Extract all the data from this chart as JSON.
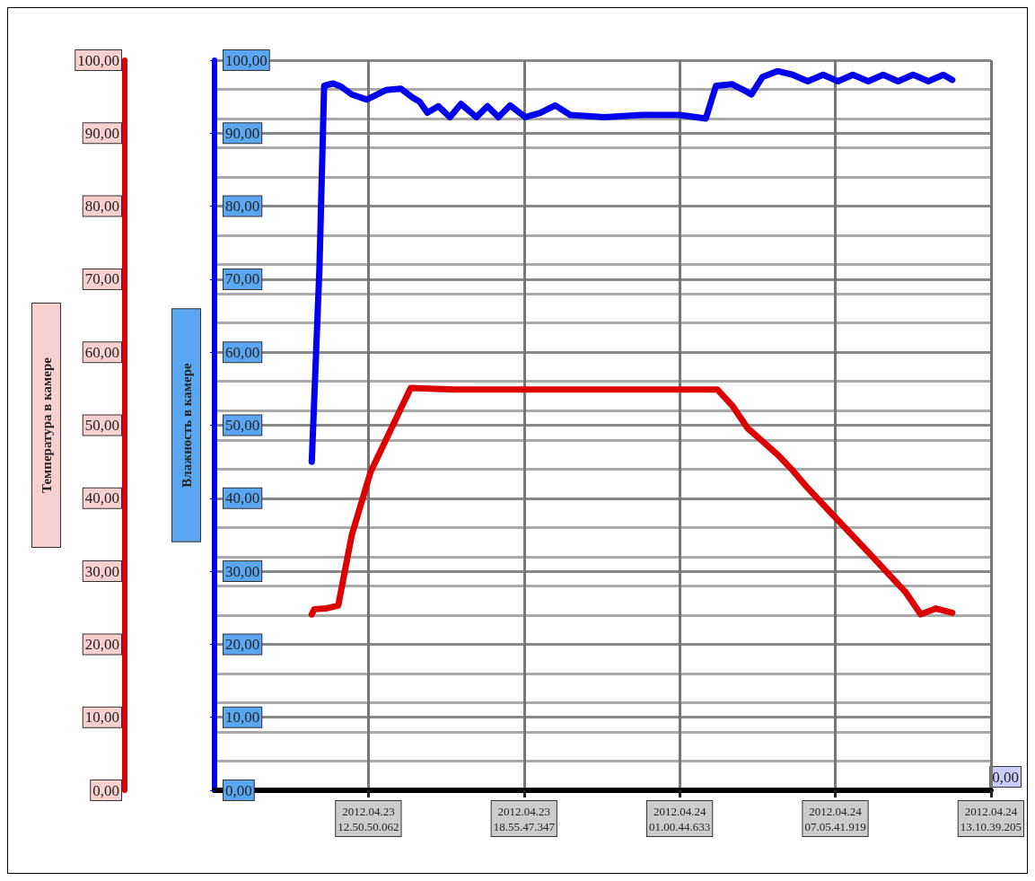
{
  "chart_data": {
    "type": "line",
    "ylabel": "Температура в камере",
    "y2label": "Влажность в камере",
    "annotations": [
      "0,00"
    ],
    "xlim": [
      "2012-04-23T06:50",
      "2012-04-24T13:10:39"
    ],
    "xticks": [
      {
        "value": "2012-04-23T12:50:50",
        "label": "2012.04.23 12.50.50.062"
      },
      {
        "value": "2012-04-23T18:55:47",
        "label": "2012.04.23 18.55.47.347"
      },
      {
        "value": "2012-04-24T01:00:45",
        "label": "2012.04.24 01.00.44.633"
      },
      {
        "value": "2012-04-24T07:05:42",
        "label": "2012.04.24 07.05.41.919"
      },
      {
        "value": "2012-04-24T13:10:39",
        "label": "2012.04.24 13.10.39.205"
      }
    ],
    "ylim": [
      0,
      100
    ],
    "yticks": [
      {
        "value": 0,
        "label": "0,00"
      },
      {
        "value": 10,
        "label": "10,00"
      },
      {
        "value": 20,
        "label": "20,00"
      },
      {
        "value": 30,
        "label": "30,00"
      },
      {
        "value": 40,
        "label": "40,00"
      },
      {
        "value": 50,
        "label": "50,00"
      },
      {
        "value": 60,
        "label": "60,00"
      },
      {
        "value": 70,
        "label": "70,00"
      },
      {
        "value": 80,
        "label": "80,00"
      },
      {
        "value": 90,
        "label": "90,00"
      },
      {
        "value": 100,
        "label": "100,00"
      }
    ],
    "y2lim": [
      0,
      100
    ],
    "y2ticks": [
      {
        "value": 0,
        "label": "0,00"
      },
      {
        "value": 10,
        "label": "10,00"
      },
      {
        "value": 20,
        "label": "20,00"
      },
      {
        "value": 30,
        "label": "30,00"
      },
      {
        "value": 40,
        "label": "40,00"
      },
      {
        "value": 50,
        "label": "50,00"
      },
      {
        "value": 60,
        "label": "60,00"
      },
      {
        "value": 70,
        "label": "70,00"
      },
      {
        "value": 80,
        "label": "80,00"
      },
      {
        "value": 90,
        "label": "90,00"
      },
      {
        "value": 100,
        "label": "100,00"
      }
    ],
    "grid": true,
    "marker": "none",
    "line_style": "solid",
    "series": [
      {
        "color": "#dd0000",
        "x": [
          "2012-04-23T10:38",
          "2012-04-23T10:44",
          "2012-04-23T11:10",
          "2012-04-23T11:40",
          "2012-04-23T12:12",
          "2012-04-23T12:56",
          "2012-04-23T14:30",
          "2012-04-23T16:11",
          "2012-04-23T19:07",
          "2012-04-23T22:04",
          "2012-04-24T01:01",
          "2012-04-24T02:29",
          "2012-04-24T03:04",
          "2012-04-24T03:40",
          "2012-04-24T04:15",
          "2012-04-24T04:50",
          "2012-04-24T05:26",
          "2012-04-24T06:01",
          "2012-04-24T06:54",
          "2012-04-24T08:23",
          "2012-04-24T09:51",
          "2012-04-24T10:26",
          "2012-04-24T11:02",
          "2012-04-24T11:40"
        ],
        "values": [
          24.1,
          24.8,
          24.9,
          25.3,
          35.0,
          43.6,
          55.1,
          54.9,
          54.9,
          54.9,
          54.9,
          54.9,
          52.7,
          49.6,
          47.8,
          46.0,
          43.8,
          41.4,
          38.1,
          32.6,
          27.1,
          24.1,
          24.9,
          24.3
        ]
      },
      {
        "color": "#0000ee",
        "axis": "y2",
        "x": [
          "2012-04-23T10:38",
          "2012-04-23T10:56",
          "2012-04-23T11:07",
          "2012-04-23T11:28",
          "2012-04-23T11:46",
          "2012-04-23T12:12",
          "2012-04-23T12:47",
          "2012-04-23T13:32",
          "2012-04-23T14:07",
          "2012-04-23T14:34",
          "2012-04-23T14:51",
          "2012-04-23T15:09",
          "2012-04-23T15:35",
          "2012-04-23T16:02",
          "2012-04-23T16:28",
          "2012-04-23T17:04",
          "2012-04-23T17:30",
          "2012-04-23T17:56",
          "2012-04-23T18:23",
          "2012-04-23T18:59",
          "2012-04-23T19:34",
          "2012-04-23T20:09",
          "2012-04-23T20:44",
          "2012-04-23T22:04",
          "2012-04-23T23:32",
          "2012-04-24T01:01",
          "2012-04-24T02:02",
          "2012-04-24T02:26",
          "2012-04-24T03:04",
          "2012-04-24T03:31",
          "2012-04-24T03:49",
          "2012-04-24T04:15",
          "2012-04-24T04:50",
          "2012-04-24T05:26",
          "2012-04-24T06:01",
          "2012-04-24T06:37",
          "2012-04-24T07:12",
          "2012-04-24T07:47",
          "2012-04-24T08:23",
          "2012-04-24T08:58",
          "2012-04-24T09:33",
          "2012-04-24T10:08",
          "2012-04-24T10:44",
          "2012-04-24T11:19",
          "2012-04-24T11:40"
        ],
        "values": [
          45.0,
          71.5,
          96.5,
          96.8,
          96.4,
          95.3,
          94.6,
          95.9,
          96.1,
          94.9,
          94.3,
          92.8,
          93.7,
          92.2,
          94.0,
          92.2,
          93.7,
          92.2,
          93.8,
          92.2,
          92.8,
          93.8,
          92.5,
          92.2,
          92.5,
          92.5,
          92.0,
          96.5,
          96.7,
          95.9,
          95.3,
          97.7,
          98.5,
          98.0,
          97.1,
          98.0,
          97.1,
          98.0,
          97.1,
          98.0,
          97.1,
          98.0,
          97.1,
          98.0,
          97.3
        ]
      }
    ]
  }
}
